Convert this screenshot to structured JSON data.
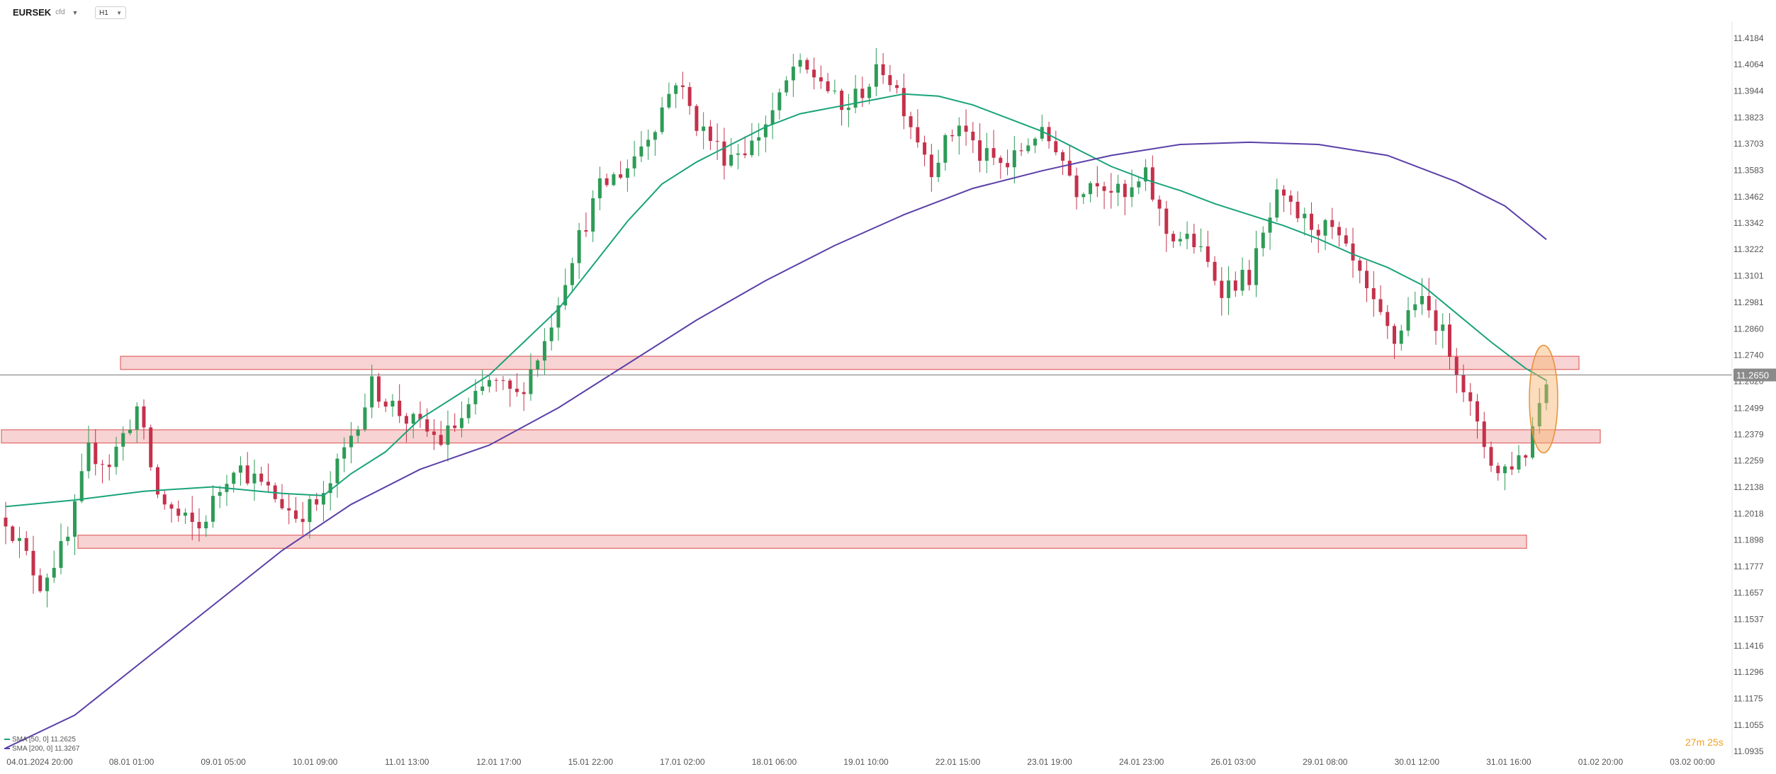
{
  "header": {
    "symbol": "EURSEK",
    "symbol_suffix": "cfd",
    "timeframe": "H1"
  },
  "current_price_label": "11.2650",
  "countdown": "27m 25s",
  "legend": [
    {
      "label": "SMA [50, 0] 11.2625",
      "color": "#1aa37a"
    },
    {
      "label": "SMA [200, 0] 11.3267",
      "color": "#5b3fa8"
    }
  ],
  "chart_data": {
    "type": "candlestick",
    "y_ticks": [
      "11.4184",
      "11.4064",
      "11.3944",
      "11.3823",
      "11.3703",
      "11.3583",
      "11.3462",
      "11.3342",
      "11.3222",
      "11.3101",
      "11.2981",
      "11.2860",
      "11.2740",
      "11.2620",
      "11.2499",
      "11.2379",
      "11.2259",
      "11.2138",
      "11.2018",
      "11.1898",
      "11.1777",
      "11.1657",
      "11.1537",
      "11.1416",
      "11.1296",
      "11.1175",
      "11.1055",
      "11.0935"
    ],
    "ylim": [
      11.0935,
      11.4184
    ],
    "x_ticks": [
      "04.01.2024 20:00",
      "08.01 01:00",
      "09.01 05:00",
      "10.01 09:00",
      "11.01 13:00",
      "12.01 17:00",
      "15.01 22:00",
      "17.01 02:00",
      "18.01 06:00",
      "19.01 10:00",
      "22.01 15:00",
      "23.01 19:00",
      "24.01 23:00",
      "26.01 03:00",
      "29.01 08:00",
      "30.01 12:00",
      "31.01 16:00",
      "01.02 20:00",
      "03.02 00:00"
    ],
    "current_price": 11.265,
    "zones": [
      {
        "low": 11.2675,
        "high": 11.2735
      },
      {
        "low": 11.234,
        "high": 11.24
      },
      {
        "low": 11.186,
        "high": 11.192
      }
    ],
    "price_path": [
      [
        0,
        11.2
      ],
      [
        5,
        11.17
      ],
      [
        9,
        11.19
      ],
      [
        12,
        11.23
      ],
      [
        15,
        11.225
      ],
      [
        19,
        11.25
      ],
      [
        22,
        11.21
      ],
      [
        25,
        11.2
      ],
      [
        28,
        11.195
      ],
      [
        33,
        11.225
      ],
      [
        38,
        11.212
      ],
      [
        42,
        11.201
      ],
      [
        46,
        11.208
      ],
      [
        53,
        11.26
      ],
      [
        58,
        11.245
      ],
      [
        63,
        11.235
      ],
      [
        66,
        11.245
      ],
      [
        70,
        11.262
      ],
      [
        74,
        11.255
      ],
      [
        78,
        11.28
      ],
      [
        82,
        11.32
      ],
      [
        86,
        11.35
      ],
      [
        90,
        11.36
      ],
      [
        94,
        11.38
      ],
      [
        97,
        11.4
      ],
      [
        100,
        11.38
      ],
      [
        104,
        11.365
      ],
      [
        108,
        11.37
      ],
      [
        112,
        11.39
      ],
      [
        114,
        11.405
      ],
      [
        118,
        11.4
      ],
      [
        121,
        11.385
      ],
      [
        124,
        11.395
      ],
      [
        127,
        11.405
      ],
      [
        129,
        11.395
      ],
      [
        131,
        11.38
      ],
      [
        134,
        11.36
      ],
      [
        138,
        11.38
      ],
      [
        141,
        11.365
      ],
      [
        145,
        11.36
      ],
      [
        149,
        11.375
      ],
      [
        152,
        11.37
      ],
      [
        155,
        11.35
      ],
      [
        158,
        11.355
      ],
      [
        162,
        11.345
      ],
      [
        165,
        11.355
      ],
      [
        168,
        11.33
      ],
      [
        172,
        11.325
      ],
      [
        176,
        11.305
      ],
      [
        180,
        11.31
      ],
      [
        184,
        11.345
      ],
      [
        188,
        11.335
      ],
      [
        192,
        11.33
      ],
      [
        195,
        11.315
      ],
      [
        198,
        11.295
      ],
      [
        201,
        11.28
      ],
      [
        204,
        11.3
      ],
      [
        207,
        11.29
      ],
      [
        210,
        11.27
      ],
      [
        213,
        11.24
      ],
      [
        216,
        11.22
      ],
      [
        220,
        11.23
      ],
      [
        223,
        11.265
      ]
    ],
    "series": [
      {
        "name": "SMA [50, 0]",
        "color": "#1aa37a",
        "points": [
          [
            0,
            11.205
          ],
          [
            10,
            11.208
          ],
          [
            20,
            11.212
          ],
          [
            30,
            11.214
          ],
          [
            40,
            11.211
          ],
          [
            46,
            11.21
          ],
          [
            50,
            11.22
          ],
          [
            55,
            11.23
          ],
          [
            60,
            11.245
          ],
          [
            65,
            11.255
          ],
          [
            70,
            11.265
          ],
          [
            75,
            11.28
          ],
          [
            80,
            11.295
          ],
          [
            85,
            11.315
          ],
          [
            90,
            11.335
          ],
          [
            95,
            11.352
          ],
          [
            100,
            11.362
          ],
          [
            105,
            11.37
          ],
          [
            110,
            11.378
          ],
          [
            115,
            11.384
          ],
          [
            120,
            11.387
          ],
          [
            125,
            11.39
          ],
          [
            130,
            11.393
          ],
          [
            135,
            11.392
          ],
          [
            140,
            11.388
          ],
          [
            145,
            11.382
          ],
          [
            150,
            11.376
          ],
          [
            155,
            11.368
          ],
          [
            160,
            11.36
          ],
          [
            165,
            11.354
          ],
          [
            170,
            11.349
          ],
          [
            175,
            11.343
          ],
          [
            180,
            11.338
          ],
          [
            185,
            11.333
          ],
          [
            190,
            11.327
          ],
          [
            195,
            11.32
          ],
          [
            200,
            11.314
          ],
          [
            205,
            11.306
          ],
          [
            210,
            11.293
          ],
          [
            215,
            11.28
          ],
          [
            220,
            11.268
          ],
          [
            223,
            11.2625
          ]
        ]
      },
      {
        "name": "SMA [200, 0]",
        "color": "#5b3fa8",
        "points": [
          [
            0,
            11.095
          ],
          [
            10,
            11.11
          ],
          [
            20,
            11.135
          ],
          [
            30,
            11.16
          ],
          [
            40,
            11.185
          ],
          [
            50,
            11.206
          ],
          [
            60,
            11.222
          ],
          [
            70,
            11.233
          ],
          [
            80,
            11.25
          ],
          [
            90,
            11.27
          ],
          [
            100,
            11.29
          ],
          [
            110,
            11.308
          ],
          [
            120,
            11.324
          ],
          [
            130,
            11.338
          ],
          [
            140,
            11.35
          ],
          [
            150,
            11.358
          ],
          [
            160,
            11.365
          ],
          [
            170,
            11.37
          ],
          [
            180,
            11.371
          ],
          [
            190,
            11.37
          ],
          [
            200,
            11.365
          ],
          [
            210,
            11.353
          ],
          [
            217,
            11.342
          ],
          [
            223,
            11.3267
          ]
        ]
      }
    ]
  }
}
